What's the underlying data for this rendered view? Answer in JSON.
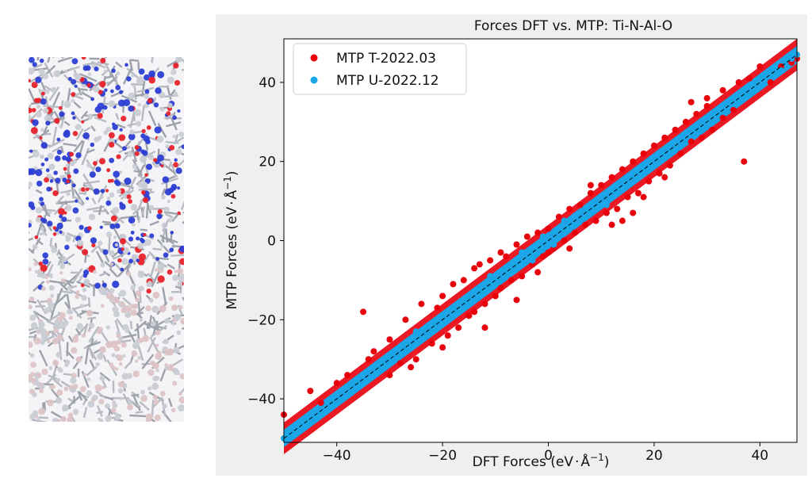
{
  "structure_panel": {
    "icon": "atomic-structure-snapshot-icon",
    "colors": {
      "oxygen": "#e8212a",
      "nitrogen": "#2c3ed4",
      "titanium": "#c9ccd4",
      "aluminum": "#dcc3c6",
      "bonds": "#b7bac2"
    }
  },
  "chart_data": {
    "type": "scatter",
    "title": "Forces DFT vs. MTP: Ti-N-Al-O",
    "xlabel": "DFT Forces (eV·Å⁻¹)",
    "ylabel": "MTP Forces (eV·Å⁻¹)",
    "xlabel_main": "DFT Forces (eV",
    "xlabel_unit": "Å",
    "xlabel_exp": "−1",
    "ylabel_main": "MTP Forces (eV",
    "ylabel_unit": "Å",
    "ylabel_exp": "−1",
    "xlim": [
      -50,
      47
    ],
    "ylim": [
      -51,
      51
    ],
    "xticks": [
      -40,
      -20,
      0,
      20,
      40
    ],
    "yticks": [
      -40,
      -20,
      0,
      20,
      40
    ],
    "xtick_labels": [
      "−40",
      "−20",
      "0",
      "20",
      "40"
    ],
    "ytick_labels": [
      "−40",
      "−20",
      "0",
      "20",
      "40"
    ],
    "grid": false,
    "legend_position": "top-left",
    "reference_line": {
      "style": "dashed",
      "from": [
        -50,
        -50
      ],
      "to": [
        47,
        47
      ]
    },
    "series": [
      {
        "name": "MTP T-2022.03",
        "color": "#e8000b",
        "points": [
          [
            -50,
            -44
          ],
          [
            -45,
            -38
          ],
          [
            -43,
            -41
          ],
          [
            -40,
            -36
          ],
          [
            -38,
            -34
          ],
          [
            -35,
            -18
          ],
          [
            -34,
            -30
          ],
          [
            -33,
            -28
          ],
          [
            -30,
            -25
          ],
          [
            -30,
            -34
          ],
          [
            -28,
            -31
          ],
          [
            -27,
            -20
          ],
          [
            -25,
            -30
          ],
          [
            -24,
            -16
          ],
          [
            -22,
            -26
          ],
          [
            -21,
            -17
          ],
          [
            -20,
            -14
          ],
          [
            -19,
            -24
          ],
          [
            -18,
            -11
          ],
          [
            -17,
            -22
          ],
          [
            -16,
            -10
          ],
          [
            -15,
            -19
          ],
          [
            -14,
            -7
          ],
          [
            -14,
            -18
          ],
          [
            -13,
            -6
          ],
          [
            -12,
            -16
          ],
          [
            -11,
            -5
          ],
          [
            -10,
            -14
          ],
          [
            -9,
            -3
          ],
          [
            -9,
            -12
          ],
          [
            -8,
            -4
          ],
          [
            -7,
            -10
          ],
          [
            -6,
            -1
          ],
          [
            -5,
            -9
          ],
          [
            -4,
            1
          ],
          [
            -3,
            -6
          ],
          [
            -2,
            2
          ],
          [
            -1,
            -4
          ],
          [
            0,
            3
          ],
          [
            1,
            -2
          ],
          [
            2,
            6
          ],
          [
            3,
            0
          ],
          [
            4,
            8
          ],
          [
            5,
            2
          ],
          [
            6,
            9
          ],
          [
            7,
            4
          ],
          [
            8,
            12
          ],
          [
            9,
            5
          ],
          [
            10,
            14
          ],
          [
            11,
            7
          ],
          [
            12,
            16
          ],
          [
            13,
            8
          ],
          [
            14,
            18
          ],
          [
            15,
            11
          ],
          [
            16,
            20
          ],
          [
            17,
            12
          ],
          [
            18,
            22
          ],
          [
            19,
            15
          ],
          [
            20,
            24
          ],
          [
            21,
            17
          ],
          [
            22,
            26
          ],
          [
            23,
            19
          ],
          [
            24,
            28
          ],
          [
            25,
            22
          ],
          [
            26,
            30
          ],
          [
            27,
            25
          ],
          [
            28,
            32
          ],
          [
            29,
            26
          ],
          [
            30,
            34
          ],
          [
            31,
            28
          ],
          [
            33,
            38
          ],
          [
            33,
            31
          ],
          [
            35,
            33
          ],
          [
            36,
            40
          ],
          [
            37,
            20
          ],
          [
            38,
            41
          ],
          [
            40,
            44
          ],
          [
            42,
            40
          ],
          [
            44,
            44
          ],
          [
            46,
            45
          ],
          [
            47,
            46
          ],
          [
            16,
            7
          ],
          [
            14,
            5
          ],
          [
            30,
            36
          ],
          [
            27,
            35
          ],
          [
            -6,
            -15
          ],
          [
            -12,
            -22
          ],
          [
            8,
            14
          ],
          [
            4,
            -2
          ],
          [
            -20,
            -27
          ],
          [
            -26,
            -32
          ],
          [
            18,
            11
          ],
          [
            22,
            16
          ],
          [
            12,
            4
          ],
          [
            -2,
            -8
          ],
          [
            0,
            -3
          ]
        ]
      },
      {
        "name": "MTP U-2022.12",
        "color": "#1ba6e8",
        "points": [
          [
            -50,
            -50
          ],
          [
            -46,
            -45
          ],
          [
            -42,
            -42
          ],
          [
            -38,
            -37
          ],
          [
            -36,
            -36
          ],
          [
            -33,
            -32
          ],
          [
            -30,
            -30
          ],
          [
            -28,
            -27
          ],
          [
            -26,
            -26
          ],
          [
            -24,
            -24
          ],
          [
            -22,
            -21
          ],
          [
            -20,
            -20
          ],
          [
            -18,
            -18
          ],
          [
            -16,
            -16
          ],
          [
            -14,
            -13
          ],
          [
            -12,
            -12
          ],
          [
            -10,
            -10
          ],
          [
            -8,
            -8
          ],
          [
            -6,
            -6
          ],
          [
            -4,
            -4
          ],
          [
            -2,
            -2
          ],
          [
            0,
            0
          ],
          [
            2,
            2
          ],
          [
            4,
            4
          ],
          [
            6,
            6
          ],
          [
            8,
            8
          ],
          [
            10,
            10
          ],
          [
            12,
            12
          ],
          [
            14,
            14
          ],
          [
            16,
            16
          ],
          [
            18,
            18
          ],
          [
            20,
            20
          ],
          [
            22,
            22
          ],
          [
            24,
            24
          ],
          [
            26,
            26
          ],
          [
            28,
            28
          ],
          [
            30,
            30
          ],
          [
            32,
            32
          ],
          [
            34,
            34
          ],
          [
            36,
            36
          ],
          [
            38,
            37
          ],
          [
            40,
            40
          ],
          [
            42,
            42
          ],
          [
            44,
            43
          ],
          [
            46,
            46
          ],
          [
            47,
            47
          ],
          [
            -25,
            -23
          ],
          [
            -15,
            -14
          ],
          [
            -5,
            -3
          ],
          [
            5,
            6
          ],
          [
            15,
            14
          ],
          [
            25,
            24
          ],
          [
            -9,
            -10
          ],
          [
            9,
            10
          ],
          [
            3,
            5
          ],
          [
            -3,
            -5
          ],
          [
            11,
            9
          ],
          [
            -11,
            -9
          ],
          [
            1,
            -1
          ],
          [
            -1,
            1
          ]
        ]
      }
    ]
  }
}
